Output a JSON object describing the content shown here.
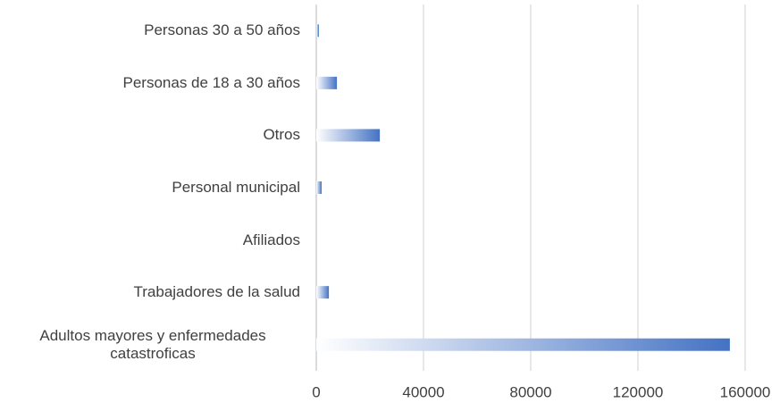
{
  "chart_data": {
    "type": "bar",
    "orientation": "horizontal",
    "categories": [
      "Personas 30 a 50 años",
      "Personas de 18 a 30 años",
      "Otros",
      "Personal municipal",
      "Afiliados",
      "Trabajadores de la salud",
      "Adultos mayores y enfermedades catastroficas"
    ],
    "values": [
      1000,
      7700,
      23700,
      2000,
      0,
      4700,
      154300
    ],
    "color": "#4472c4",
    "xlim": [
      0,
      160000
    ],
    "xticks": [
      0,
      40000,
      80000,
      120000,
      160000
    ],
    "grid": true
  }
}
